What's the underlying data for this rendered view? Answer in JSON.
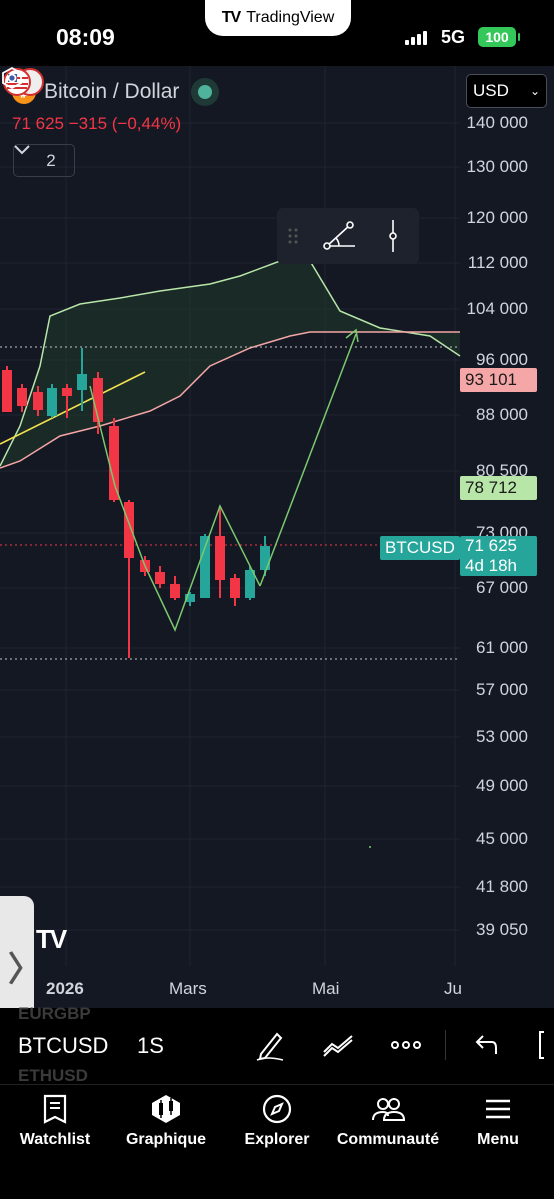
{
  "status_bar": {
    "time": "08:09",
    "network": "5G",
    "battery": "100"
  },
  "app_pill": {
    "name": "TradingView"
  },
  "symbol": {
    "title": "Bitcoin / Dollar",
    "last": "71 625",
    "change": "−315",
    "change_pct": "(−0,44%)",
    "indicators_count": "2"
  },
  "currency": "USD",
  "price_axis": [
    "140 000",
    "130 000",
    "120 000",
    "112 000",
    "104 000",
    "96 000",
    "88 000",
    "80 500",
    "73 000",
    "67 000",
    "61 000",
    "57 000",
    "53 000",
    "49 000",
    "45 000",
    "41 800",
    "39 050"
  ],
  "price_tags": {
    "upper": "93 101",
    "lower": "78 712",
    "symbol": "BTCUSD",
    "current": "71 625",
    "countdown": "4d 18h"
  },
  "time_axis": [
    "2026",
    "Mars",
    "Mai",
    "Ju"
  ],
  "colors": {
    "up": "#26a69a",
    "down": "#f23645",
    "cloud_up": "#b7e6a8",
    "cloud_down": "#f4a6a6",
    "bg": "#141823"
  },
  "toolbar": {
    "ghost_above": "EURGBP",
    "symbol": "BTCUSD",
    "interval": "1S",
    "ghost_below": "ETHUSD"
  },
  "tabs": [
    {
      "label": "Watchlist",
      "icon": "watchlist-icon"
    },
    {
      "label": "Graphique",
      "icon": "chart-icon"
    },
    {
      "label": "Explorer",
      "icon": "compass-icon"
    },
    {
      "label": "Communauté",
      "icon": "community-icon"
    },
    {
      "label": "Menu",
      "icon": "menu-icon"
    }
  ]
}
